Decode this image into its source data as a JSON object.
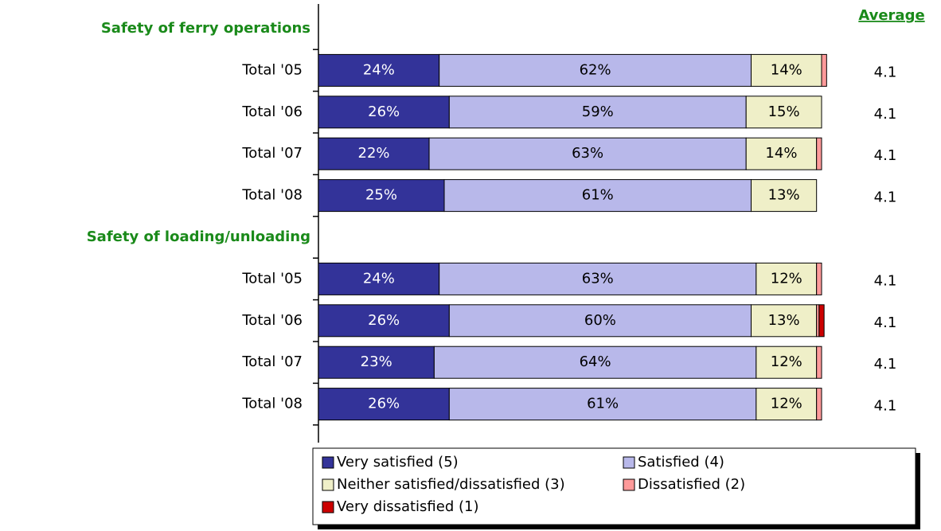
{
  "chart_data": {
    "type": "stacked-bar-horizontal",
    "categories": [
      "Safety of ferry operations",
      "Total '05",
      "Total '06",
      "Total '07",
      "Total '08",
      "Safety of loading/unloading",
      "Total '05",
      "Total '06",
      "Total '07",
      "Total '08"
    ],
    "xlim": [
      0,
      100
    ],
    "series": [
      {
        "name": "Very satisfied (5)",
        "color": "#333399",
        "values": [
          null,
          24,
          26,
          22,
          25,
          null,
          24,
          26,
          23,
          26
        ],
        "value_labels": [
          null,
          "24%",
          "26%",
          "22%",
          "25%",
          null,
          "24%",
          "26%",
          "23%",
          "26%"
        ]
      },
      {
        "name": "Satisfied (4)",
        "color": "#b8b8ea",
        "values": [
          null,
          62,
          59,
          63,
          61,
          null,
          63,
          60,
          64,
          61
        ],
        "value_labels": [
          null,
          "62%",
          "59%",
          "63%",
          "61%",
          null,
          "63%",
          "60%",
          "64%",
          "61%"
        ]
      },
      {
        "name": "Neither satisfied/dissatisfied (3)",
        "color": "#efefc8",
        "values": [
          null,
          14,
          15,
          14,
          13,
          null,
          12,
          13,
          12,
          12
        ],
        "value_labels": [
          null,
          "14%",
          "15%",
          "14%",
          "13%",
          null,
          "12%",
          "13%",
          "12%",
          "12%"
        ]
      },
      {
        "name": "Dissatisfied (2)",
        "color": "#ff9a9a",
        "values": [
          null,
          1,
          0,
          1,
          0,
          null,
          1,
          0.5,
          1,
          1
        ]
      },
      {
        "name": "Very dissatisfied (1)",
        "color": "#cc0000",
        "values": [
          null,
          0,
          0,
          0,
          0,
          null,
          0,
          1,
          0,
          0
        ]
      }
    ],
    "average": {
      "label": "Average",
      "values": [
        null,
        4.1,
        4.1,
        4.1,
        4.1,
        null,
        4.1,
        4.1,
        4.1,
        4.1
      ]
    }
  }
}
